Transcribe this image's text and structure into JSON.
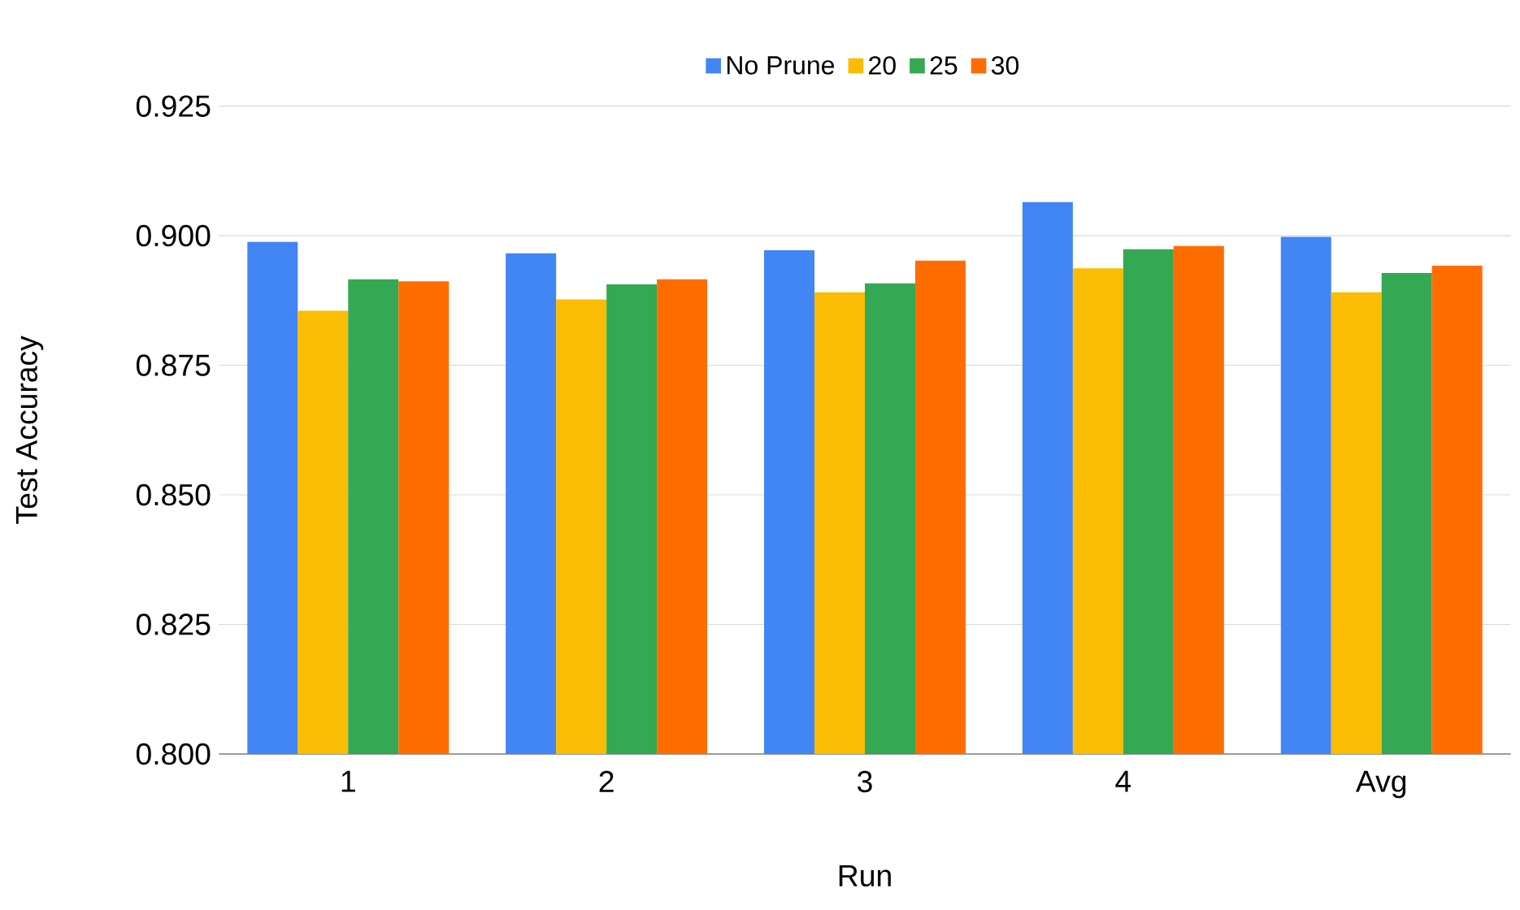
{
  "chart_data": {
    "type": "bar",
    "xlabel": "Run",
    "ylabel": "Test Accuracy",
    "categories": [
      "1",
      "2",
      "3",
      "4",
      "Avg"
    ],
    "series": [
      {
        "name": "No Prune",
        "color": "#4285f4",
        "values": [
          0.8988,
          0.8966,
          0.8972,
          0.9065,
          0.8998
        ]
      },
      {
        "name": "20",
        "color": "#fbbc04",
        "values": [
          0.8855,
          0.8877,
          0.8891,
          0.8937,
          0.8891
        ]
      },
      {
        "name": "25",
        "color": "#34a853",
        "values": [
          0.8916,
          0.8906,
          0.8908,
          0.8974,
          0.8928
        ]
      },
      {
        "name": "30",
        "color": "#ff6d01",
        "values": [
          0.8912,
          0.8916,
          0.8952,
          0.898,
          0.8942
        ]
      }
    ],
    "ylim": [
      0.8,
      0.925
    ],
    "yticks": [
      {
        "value": 0.8,
        "label": "0.800"
      },
      {
        "value": 0.825,
        "label": "0.825"
      },
      {
        "value": 0.85,
        "label": "0.850"
      },
      {
        "value": 0.875,
        "label": "0.875"
      },
      {
        "value": 0.9,
        "label": "0.900"
      },
      {
        "value": 0.925,
        "label": "0.925"
      }
    ],
    "grid": "y",
    "legend": "top"
  }
}
